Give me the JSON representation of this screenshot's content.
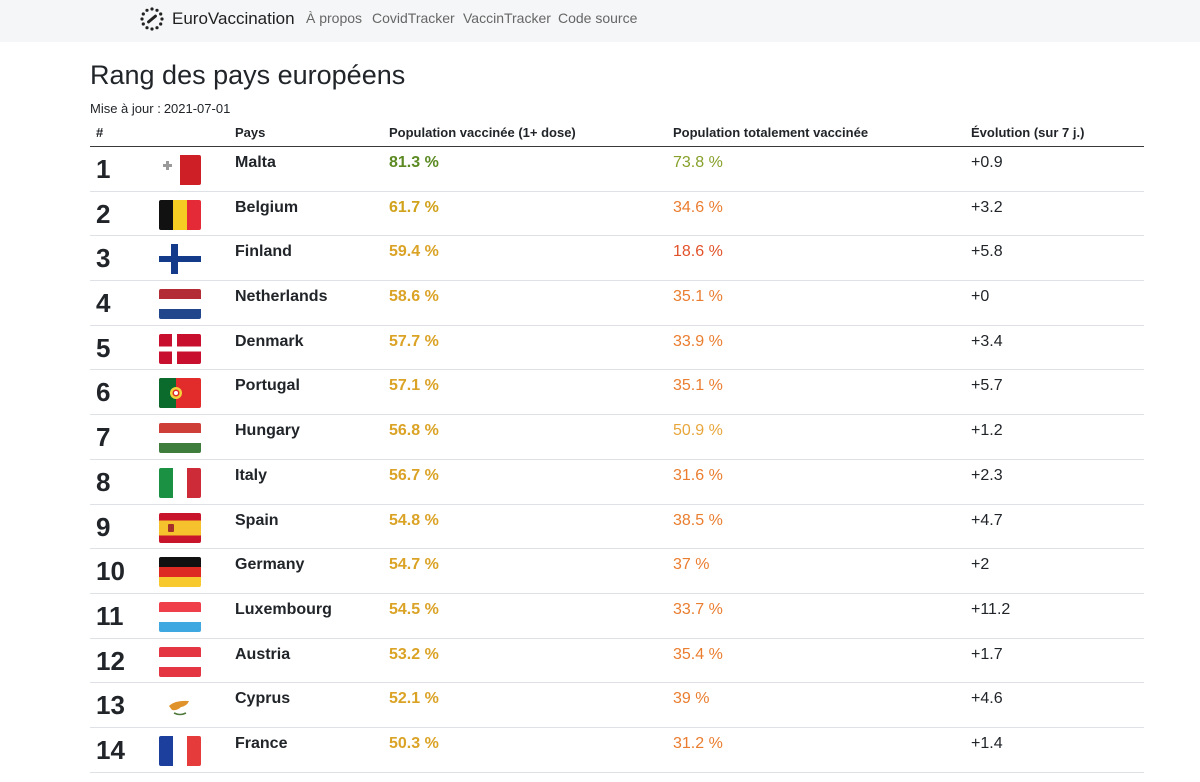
{
  "nav": {
    "brand": "EuroVaccination",
    "links": [
      "À propos",
      "CovidTracker",
      "VaccinTracker",
      "Code source"
    ]
  },
  "page": {
    "title": "Rang des pays européens",
    "updated_label": "Mise à jour :",
    "updated_date": "2021-07-01"
  },
  "table": {
    "headers": {
      "rank": "#",
      "country": "Pays",
      "one_dose": "Population vaccinée (1+ dose)",
      "full": "Population totalement vaccinée",
      "evolution": "Évolution (sur 7 j.)"
    },
    "rows": [
      {
        "rank": "1",
        "flag": "malta-flag-icon",
        "country": "Malta",
        "one_dose": "81.3 %",
        "one_dose_color": "#5b8a22",
        "full": "73.8 %",
        "full_color": "#86a02a",
        "evolution": "+0.9"
      },
      {
        "rank": "2",
        "flag": "belgium-flag-icon",
        "country": "Belgium",
        "one_dose": "61.7 %",
        "one_dose_color": "#d1a21b",
        "full": "34.6 %",
        "full_color": "#ea7d2f",
        "evolution": "+3.2"
      },
      {
        "rank": "3",
        "flag": "finland-flag-icon",
        "country": "Finland",
        "one_dose": "59.4 %",
        "one_dose_color": "#dba326",
        "full": "18.6 %",
        "full_color": "#e2522a",
        "evolution": "+5.8"
      },
      {
        "rank": "4",
        "flag": "netherlands-flag-icon",
        "country": "Netherlands",
        "one_dose": "58.6 %",
        "one_dose_color": "#dba326",
        "full": "35.1 %",
        "full_color": "#ea7d2f",
        "evolution": "+0"
      },
      {
        "rank": "5",
        "flag": "denmark-flag-icon",
        "country": "Denmark",
        "one_dose": "57.7 %",
        "one_dose_color": "#dba326",
        "full": "33.9 %",
        "full_color": "#ea7d2f",
        "evolution": "+3.4"
      },
      {
        "rank": "6",
        "flag": "portugal-flag-icon",
        "country": "Portugal",
        "one_dose": "57.1 %",
        "one_dose_color": "#dba326",
        "full": "35.1 %",
        "full_color": "#ea7d2f",
        "evolution": "+5.7"
      },
      {
        "rank": "7",
        "flag": "hungary-flag-icon",
        "country": "Hungary",
        "one_dose": "56.8 %",
        "one_dose_color": "#dba326",
        "full": "50.9 %",
        "full_color": "#e8a63b",
        "evolution": "+1.2"
      },
      {
        "rank": "8",
        "flag": "italy-flag-icon",
        "country": "Italy",
        "one_dose": "56.7 %",
        "one_dose_color": "#dba326",
        "full": "31.6 %",
        "full_color": "#ea7d2f",
        "evolution": "+2.3"
      },
      {
        "rank": "9",
        "flag": "spain-flag-icon",
        "country": "Spain",
        "one_dose": "54.8 %",
        "one_dose_color": "#dba326",
        "full": "38.5 %",
        "full_color": "#ea7d2f",
        "evolution": "+4.7"
      },
      {
        "rank": "10",
        "flag": "germany-flag-icon",
        "country": "Germany",
        "one_dose": "54.7 %",
        "one_dose_color": "#dba326",
        "full": "37 %",
        "full_color": "#ea7d2f",
        "evolution": "+2"
      },
      {
        "rank": "11",
        "flag": "luxembourg-flag-icon",
        "country": "Luxembourg",
        "one_dose": "54.5 %",
        "one_dose_color": "#dba326",
        "full": "33.7 %",
        "full_color": "#ea7d2f",
        "evolution": "+11.2"
      },
      {
        "rank": "12",
        "flag": "austria-flag-icon",
        "country": "Austria",
        "one_dose": "53.2 %",
        "one_dose_color": "#dba326",
        "full": "35.4 %",
        "full_color": "#ea7d2f",
        "evolution": "+1.7"
      },
      {
        "rank": "13",
        "flag": "cyprus-flag-icon",
        "country": "Cyprus",
        "one_dose": "52.1 %",
        "one_dose_color": "#dba326",
        "full": "39 %",
        "full_color": "#ea7d2f",
        "evolution": "+4.6"
      },
      {
        "rank": "14",
        "flag": "france-flag-icon",
        "country": "France",
        "one_dose": "50.3 %",
        "one_dose_color": "#dba326",
        "full": "31.2 %",
        "full_color": "#ea7d2f",
        "evolution": "+1.4"
      }
    ]
  }
}
